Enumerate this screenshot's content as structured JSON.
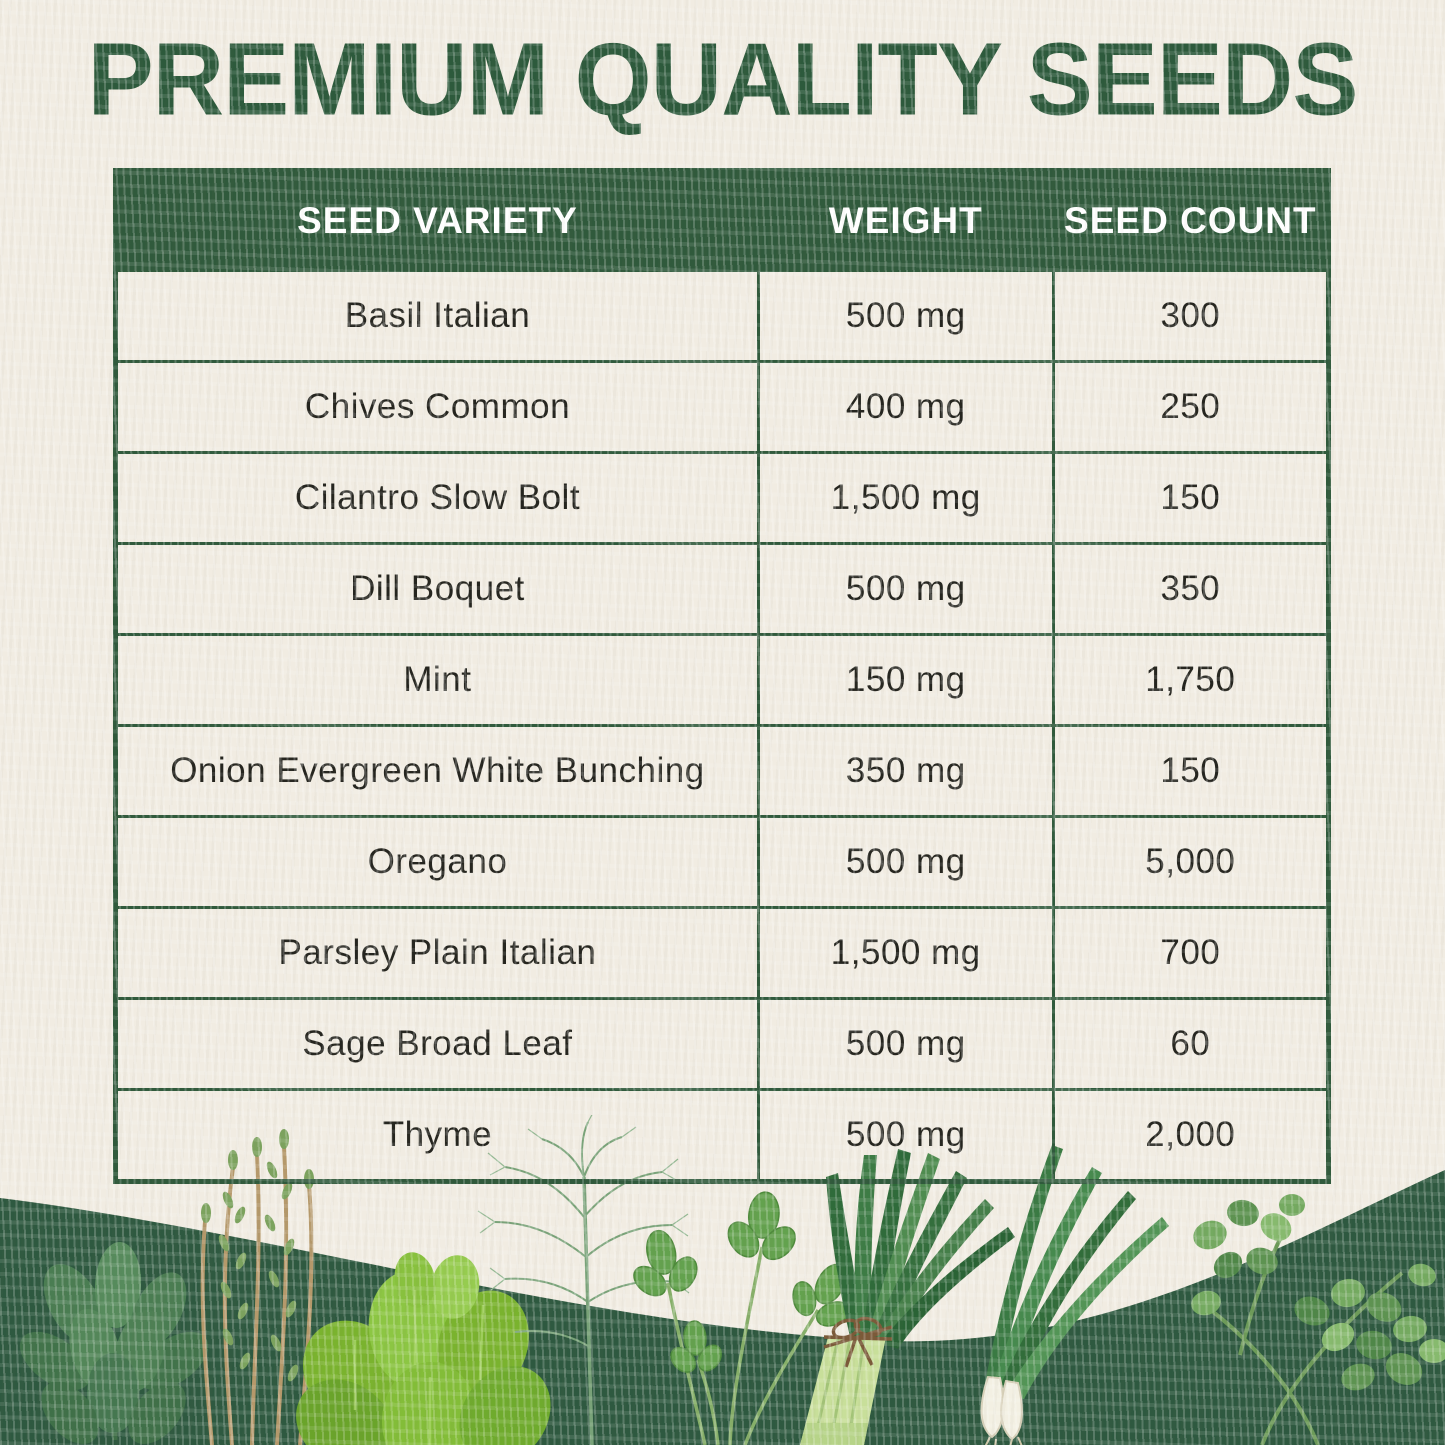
{
  "title": "PREMIUM QUALITY SEEDS",
  "table": {
    "headers": [
      "SEED VARIETY",
      "WEIGHT",
      "SEED COUNT"
    ],
    "rows": [
      [
        "Basil Italian",
        "500 mg",
        "300"
      ],
      [
        "Chives Common",
        "400 mg",
        "250"
      ],
      [
        "Cilantro Slow Bolt",
        "1,500 mg",
        "150"
      ],
      [
        "Dill Boquet",
        "500 mg",
        "350"
      ],
      [
        "Mint",
        "150 mg",
        "1,750"
      ],
      [
        "Onion Evergreen White Bunching",
        "350 mg",
        "150"
      ],
      [
        "Oregano",
        "500 mg",
        "5,000"
      ],
      [
        "Parsley Plain Italian",
        "1,500 mg",
        "700"
      ],
      [
        "Sage Broad Leaf",
        "500 mg",
        "60"
      ],
      [
        "Thyme",
        "500 mg",
        "2,000"
      ]
    ]
  },
  "footer": {
    "herbs": [
      "mint",
      "thyme",
      "basil",
      "dill",
      "parsley",
      "chives-bunch",
      "green-onion",
      "oregano"
    ]
  },
  "colors": {
    "accent_green": "#305a3c",
    "band_green": "#2e5940",
    "paper": "#f1ece2",
    "title_green": "#2d5a3c",
    "cell_text": "#25251f",
    "header_text": "#ffffff"
  }
}
